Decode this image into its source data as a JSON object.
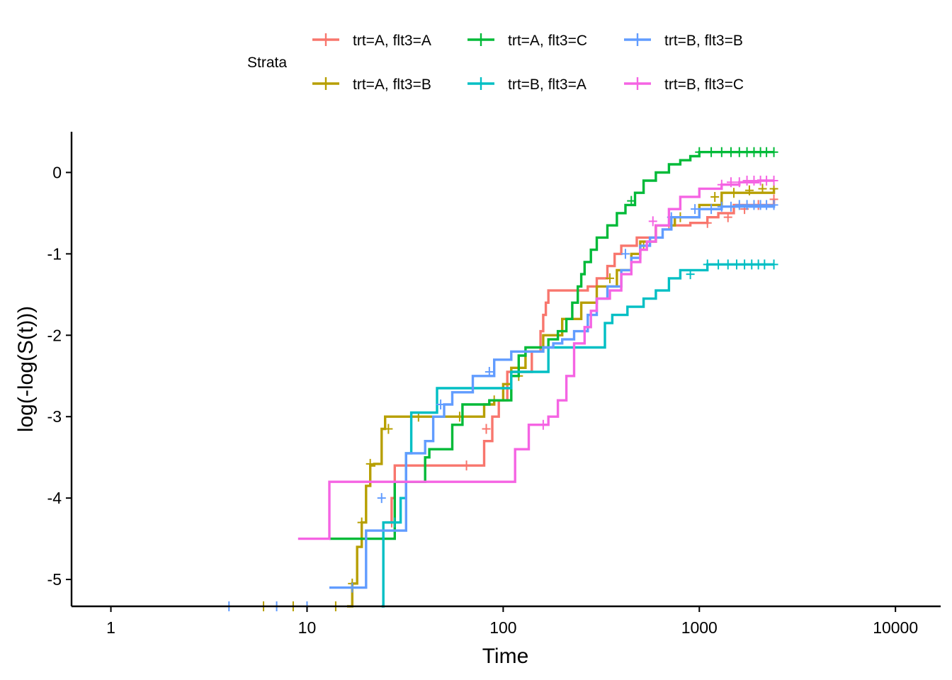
{
  "chart_data": {
    "type": "line",
    "step": true,
    "xlabel": "Time",
    "ylabel": "log(-log(S(t)))",
    "x_scale": "log",
    "xlim": [
      0.63,
      17000
    ],
    "ylim": [
      -5.33,
      0.5
    ],
    "x_ticks": [
      1,
      10,
      100,
      1000,
      10000
    ],
    "x_tick_labels": [
      "1",
      "10",
      "100",
      "1000",
      "10000"
    ],
    "y_ticks": [
      -5,
      -4,
      -3,
      -2,
      -1,
      0
    ],
    "y_tick_labels": [
      "-5",
      "-4",
      "-3",
      "-2",
      "-1",
      "0"
    ],
    "grid": false,
    "legend": {
      "title": "Strata",
      "placement": "top"
    },
    "series": [
      {
        "name": "trt=A, flt3=A",
        "color": "#F8766D",
        "x": [
          25,
          27,
          28,
          75,
          80,
          88,
          95,
          105,
          140,
          155,
          160,
          165,
          170,
          175,
          185,
          200,
          215,
          230,
          250,
          270,
          300,
          340,
          370,
          400,
          480,
          600,
          780,
          900,
          1000,
          1100,
          1250,
          1500,
          2400
        ],
        "y": [
          -4.3,
          -4.0,
          -3.6,
          -3.6,
          -3.3,
          -3.0,
          -2.8,
          -2.45,
          -2.2,
          -1.95,
          -1.75,
          -1.6,
          -1.45,
          -1.45,
          -1.45,
          -1.45,
          -1.45,
          -1.45,
          -1.45,
          -1.4,
          -1.3,
          -1.15,
          -1.0,
          -0.9,
          -0.8,
          -0.65,
          -0.65,
          -0.62,
          -0.62,
          -0.55,
          -0.5,
          -0.4,
          -0.33
        ],
        "censor_x": [
          27,
          65,
          82,
          700,
          1100,
          1400,
          1700,
          2000,
          2400
        ],
        "censor_y": [
          -4.3,
          -3.6,
          -3.15,
          -0.65,
          -0.62,
          -0.55,
          -0.45,
          -0.4,
          -0.33
        ]
      },
      {
        "name": "trt=A, flt3=B",
        "color": "#B79F00",
        "x": [
          16,
          17,
          18,
          19,
          20,
          21,
          22,
          24,
          25,
          30,
          40,
          80,
          90,
          100,
          110,
          130,
          160,
          200,
          250,
          300,
          380,
          450,
          500,
          600,
          750,
          1000,
          1300,
          2400
        ],
        "y": [
          -5.33,
          -5.05,
          -4.6,
          -4.3,
          -3.85,
          -3.6,
          -3.58,
          -3.15,
          -3.0,
          -3.0,
          -3.0,
          -2.85,
          -2.8,
          -2.6,
          -2.4,
          -2.2,
          -2.0,
          -1.8,
          -1.6,
          -1.4,
          -1.2,
          -1.0,
          -0.85,
          -0.65,
          -0.55,
          -0.4,
          -0.25,
          -0.2
        ],
        "censor_x": [
          6,
          8.5,
          14,
          17,
          19,
          21,
          26,
          37,
          60,
          90,
          120,
          350,
          520,
          800,
          1200,
          1500,
          1800,
          2100,
          2400
        ],
        "censor_y": [
          -5.33,
          -5.33,
          -5.33,
          -5.05,
          -4.3,
          -3.58,
          -3.15,
          -3.0,
          -3.0,
          -2.8,
          -2.5,
          -1.3,
          -0.9,
          -0.55,
          -0.3,
          -0.25,
          -0.22,
          -0.2,
          -0.2
        ]
      },
      {
        "name": "trt=A, flt3=C",
        "color": "#00BA38",
        "x": [
          13,
          28,
          29,
          40,
          42,
          55,
          62,
          85,
          110,
          120,
          130,
          170,
          190,
          210,
          225,
          240,
          250,
          260,
          280,
          300,
          340,
          380,
          420,
          470,
          520,
          600,
          700,
          800,
          900,
          1000,
          1500,
          2400
        ],
        "y": [
          -4.5,
          -3.8,
          -3.8,
          -3.5,
          -3.4,
          -3.1,
          -2.85,
          -2.8,
          -2.5,
          -2.25,
          -2.15,
          -2.05,
          -1.95,
          -1.8,
          -1.6,
          -1.4,
          -1.25,
          -1.1,
          -0.95,
          -0.8,
          -0.65,
          -0.5,
          -0.4,
          -0.25,
          -0.1,
          0.0,
          0.1,
          0.15,
          0.2,
          0.25,
          0.25,
          0.25
        ],
        "censor_x": [
          450,
          1000,
          1150,
          1300,
          1450,
          1600,
          1750,
          1900,
          2050,
          2200,
          2400
        ],
        "censor_y": [
          -0.35,
          0.25,
          0.25,
          0.25,
          0.25,
          0.25,
          0.25,
          0.25,
          0.25,
          0.25,
          0.25
        ]
      },
      {
        "name": "trt=B, flt3=A",
        "color": "#00BFC4",
        "x": [
          24,
          24.5,
          30,
          32,
          34,
          46,
          110,
          170,
          220,
          230,
          330,
          360,
          430,
          520,
          600,
          700,
          800,
          1100,
          1400,
          2400
        ],
        "y": [
          -5.33,
          -4.3,
          -4.0,
          -3.45,
          -2.95,
          -2.65,
          -2.45,
          -2.15,
          -2.15,
          -2.15,
          -1.85,
          -1.75,
          -1.65,
          -1.55,
          -1.45,
          -1.3,
          -1.2,
          -1.13,
          -1.13,
          -1.13
        ],
        "censor_x": [
          28,
          900,
          1100,
          1250,
          1400,
          1550,
          1700,
          1850,
          2000,
          2150,
          2400
        ],
        "censor_y": [
          -4.3,
          -1.25,
          -1.13,
          -1.13,
          -1.13,
          -1.13,
          -1.13,
          -1.13,
          -1.13,
          -1.13,
          -1.13
        ]
      },
      {
        "name": "trt=B, flt3=B",
        "color": "#619CFF",
        "x": [
          13,
          16,
          20,
          22,
          32,
          36,
          40,
          44,
          50,
          55,
          70,
          90,
          110,
          140,
          160,
          180,
          200,
          230,
          270,
          300,
          340,
          400,
          450,
          500,
          560,
          650,
          720,
          1000,
          1300,
          2400
        ],
        "y": [
          -5.1,
          -5.1,
          -4.4,
          -4.4,
          -3.45,
          -3.45,
          -3.3,
          -3.0,
          -2.85,
          -2.7,
          -2.5,
          -2.3,
          -2.2,
          -2.2,
          -2.15,
          -2.1,
          -2.05,
          -1.95,
          -1.75,
          -1.55,
          -1.4,
          -1.2,
          -1.05,
          -0.9,
          -0.8,
          -0.7,
          -0.55,
          -0.45,
          -0.42,
          -0.4
        ],
        "censor_x": [
          4,
          7,
          10,
          17,
          24,
          48,
          85,
          420,
          720,
          950,
          1150,
          1300,
          1450,
          1600,
          1750,
          1900,
          2050,
          2200,
          2400
        ],
        "censor_y": [
          -5.33,
          -5.33,
          -5.33,
          -5.1,
          -4.0,
          -2.85,
          -2.45,
          -1.0,
          -0.55,
          -0.45,
          -0.45,
          -0.42,
          -0.42,
          -0.4,
          -0.4,
          -0.4,
          -0.4,
          -0.4,
          -0.4
        ]
      },
      {
        "name": "trt=B, flt3=C",
        "color": "#F564E3",
        "x": [
          9,
          13,
          115,
          135,
          170,
          190,
          210,
          230,
          260,
          280,
          300,
          350,
          400,
          450,
          500,
          540,
          600,
          700,
          800,
          1000,
          1300,
          1600,
          2000,
          2400
        ],
        "y": [
          -4.5,
          -3.8,
          -3.4,
          -3.1,
          -3.0,
          -2.8,
          -2.5,
          -2.1,
          -1.9,
          -1.7,
          -1.55,
          -1.45,
          -1.25,
          -1.1,
          -0.95,
          -0.85,
          -0.65,
          -0.45,
          -0.3,
          -0.2,
          -0.15,
          -0.12,
          -0.1,
          -0.1
        ],
        "censor_x": [
          160,
          580,
          1300,
          1450,
          1600,
          1750,
          1900,
          2050,
          2200,
          2400
        ],
        "censor_y": [
          -3.1,
          -0.6,
          -0.15,
          -0.12,
          -0.12,
          -0.1,
          -0.1,
          -0.1,
          -0.1,
          -0.1
        ]
      }
    ]
  }
}
